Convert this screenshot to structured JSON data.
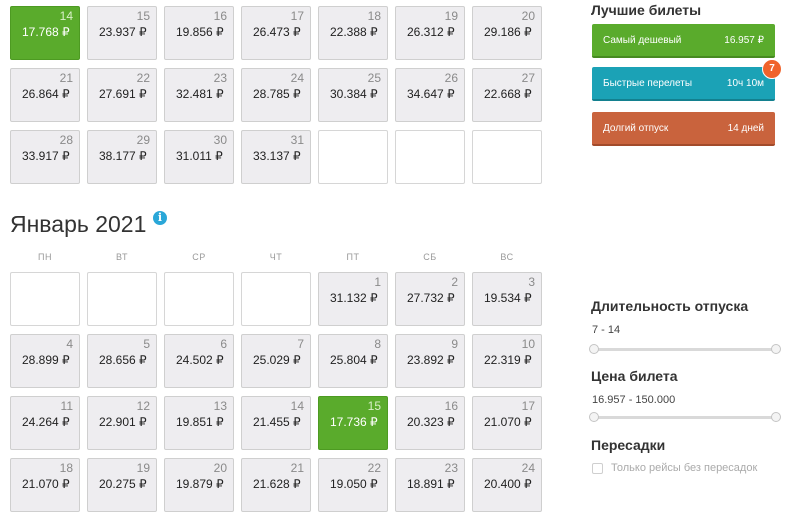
{
  "december": {
    "cells": [
      {
        "day": "14",
        "price": "17.768 ₽",
        "best": true
      },
      {
        "day": "15",
        "price": "23.937 ₽"
      },
      {
        "day": "16",
        "price": "19.856 ₽"
      },
      {
        "day": "17",
        "price": "26.473 ₽"
      },
      {
        "day": "18",
        "price": "22.388 ₽"
      },
      {
        "day": "19",
        "price": "26.312 ₽"
      },
      {
        "day": "20",
        "price": "29.186 ₽"
      },
      {
        "day": "21",
        "price": "26.864 ₽"
      },
      {
        "day": "22",
        "price": "27.691 ₽"
      },
      {
        "day": "23",
        "price": "32.481 ₽"
      },
      {
        "day": "24",
        "price": "28.785 ₽"
      },
      {
        "day": "25",
        "price": "30.384 ₽"
      },
      {
        "day": "26",
        "price": "34.647 ₽"
      },
      {
        "day": "27",
        "price": "22.668 ₽"
      },
      {
        "day": "28",
        "price": "33.917 ₽"
      },
      {
        "day": "29",
        "price": "38.177 ₽"
      },
      {
        "day": "30",
        "price": "31.011 ₽"
      },
      {
        "day": "31",
        "price": "33.137 ₽"
      },
      {
        "empty": true
      },
      {
        "empty": true
      },
      {
        "empty": true
      }
    ]
  },
  "january": {
    "title": "Январь 2021",
    "weekdays": [
      "ПН",
      "ВТ",
      "СР",
      "ЧТ",
      "ПТ",
      "СБ",
      "ВС"
    ],
    "cells": [
      {
        "empty": true
      },
      {
        "empty": true
      },
      {
        "empty": true
      },
      {
        "empty": true
      },
      {
        "day": "1",
        "price": "31.132 ₽"
      },
      {
        "day": "2",
        "price": "27.732 ₽"
      },
      {
        "day": "3",
        "price": "19.534 ₽"
      },
      {
        "day": "4",
        "price": "28.899 ₽"
      },
      {
        "day": "5",
        "price": "28.656 ₽"
      },
      {
        "day": "6",
        "price": "24.502 ₽"
      },
      {
        "day": "7",
        "price": "25.029 ₽"
      },
      {
        "day": "8",
        "price": "25.804 ₽"
      },
      {
        "day": "9",
        "price": "23.892 ₽"
      },
      {
        "day": "10",
        "price": "22.319 ₽"
      },
      {
        "day": "11",
        "price": "24.264 ₽"
      },
      {
        "day": "12",
        "price": "22.901 ₽"
      },
      {
        "day": "13",
        "price": "19.851 ₽"
      },
      {
        "day": "14",
        "price": "21.455 ₽"
      },
      {
        "day": "15",
        "price": "17.736 ₽",
        "best": true
      },
      {
        "day": "16",
        "price": "20.323 ₽"
      },
      {
        "day": "17",
        "price": "21.070 ₽"
      },
      {
        "day": "18",
        "price": "21.070 ₽"
      },
      {
        "day": "19",
        "price": "20.275 ₽"
      },
      {
        "day": "20",
        "price": "19.879 ₽"
      },
      {
        "day": "21",
        "price": "21.628 ₽"
      },
      {
        "day": "22",
        "price": "19.050 ₽"
      },
      {
        "day": "23",
        "price": "18.891 ₽"
      },
      {
        "day": "24",
        "price": "20.400 ₽"
      }
    ]
  },
  "sidebar": {
    "best_title": "Лучшие билеты",
    "cheapest": {
      "label": "Самый дешевый",
      "value": "16.957 ₽",
      "color": "#5aab2c"
    },
    "fastest": {
      "label": "Быстрые перелеты",
      "value": "10ч 10м",
      "badge": "7",
      "color": "#1ba2b6"
    },
    "long_vacation": {
      "label": "Долгий отпуск",
      "value": "14 дней",
      "color": "#c9633d"
    },
    "duration": {
      "title": "Длительность отпуска",
      "range": "7 - 14"
    },
    "price": {
      "title": "Цена билета",
      "range": "16.957 - 150.000"
    },
    "transfers": {
      "title": "Пересадки",
      "checkbox_label": "Только рейсы без пересадок"
    }
  }
}
